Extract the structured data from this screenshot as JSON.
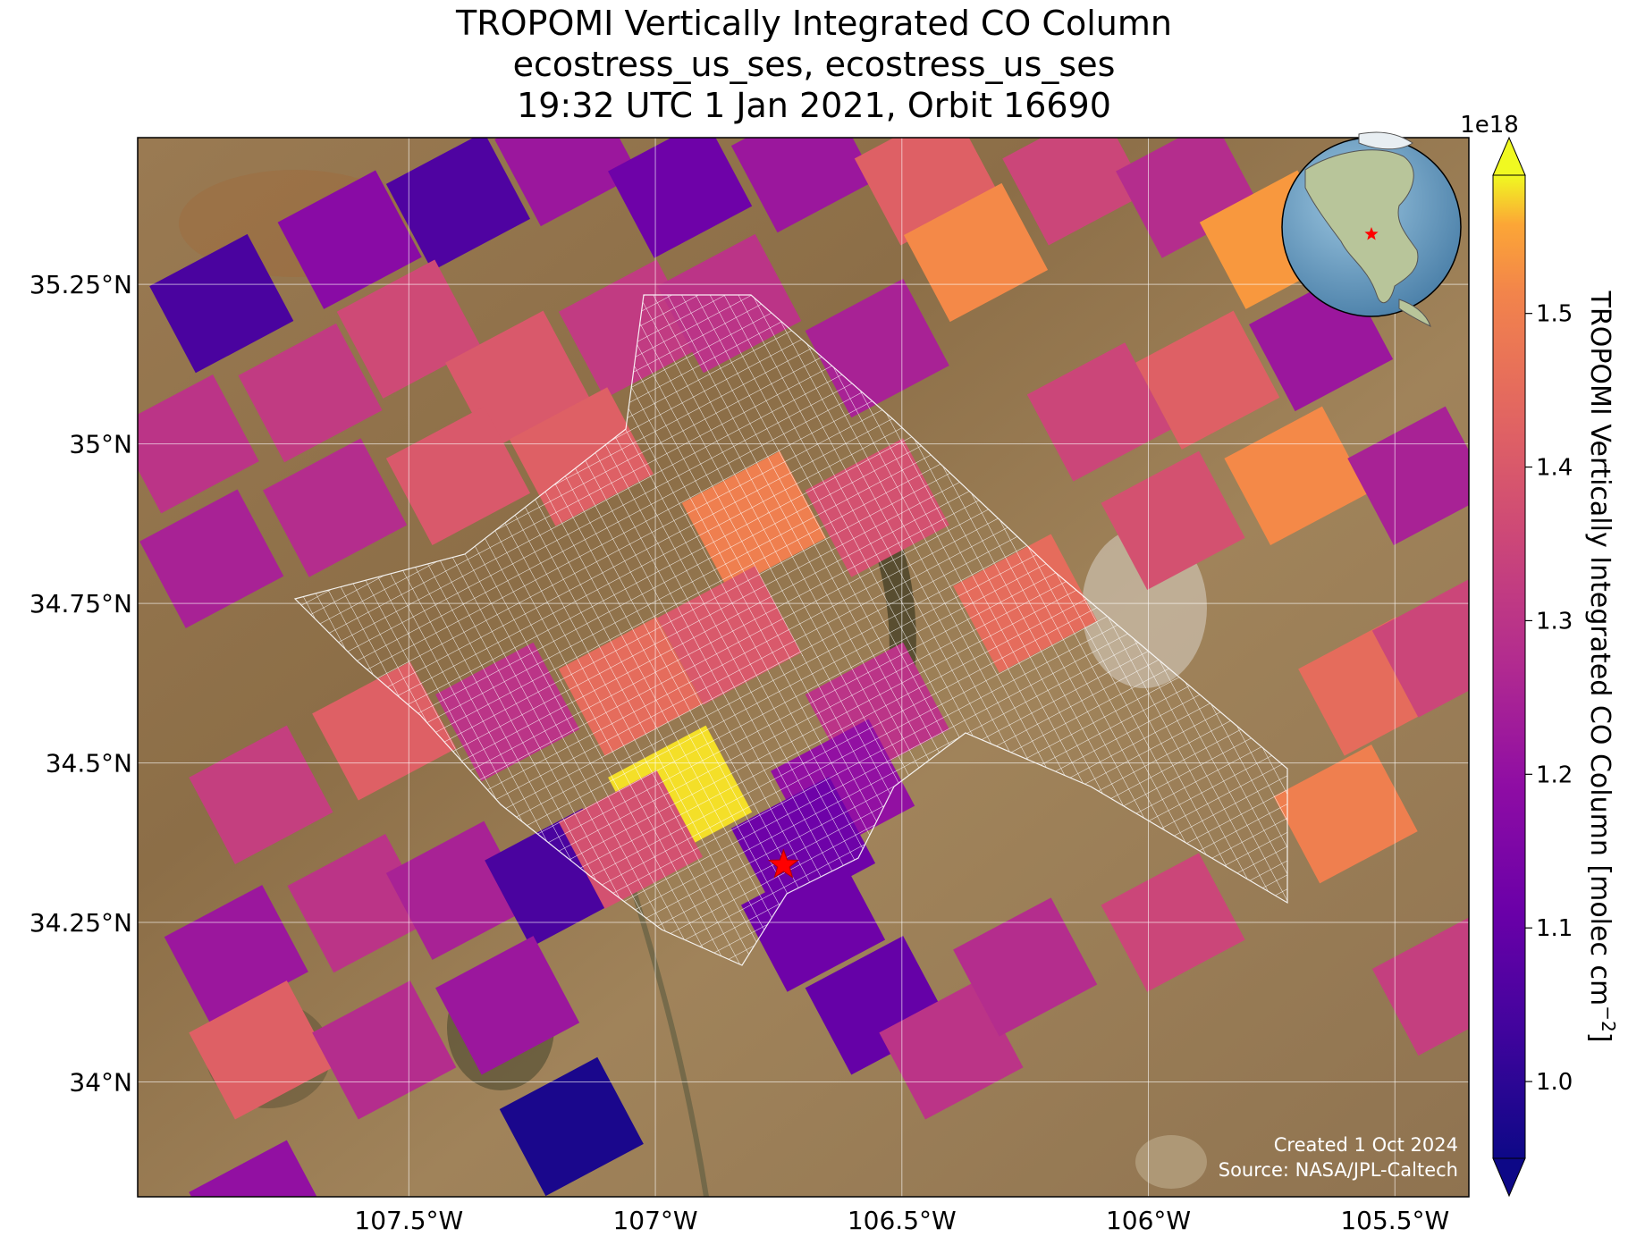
{
  "title": {
    "line1": "TROPOMI Vertically Integrated CO Column",
    "line2": "ecostress_us_ses, ecostress_us_ses",
    "line3": "19:32 UTC 1 Jan 2021, Orbit 16690"
  },
  "credits": {
    "created": "Created 1 Oct 2024",
    "source": "Source: NASA/JPL-Caltech"
  },
  "map": {
    "lon_range": [
      -108.05,
      -105.35
    ],
    "lat_range": [
      33.82,
      35.48
    ],
    "lon_ticks": [
      {
        "value": -107.5,
        "label": "107.5°W"
      },
      {
        "value": -107.0,
        "label": "107°W"
      },
      {
        "value": -106.5,
        "label": "106.5°W"
      },
      {
        "value": -106.0,
        "label": "106°W"
      },
      {
        "value": -105.5,
        "label": "105.5°W"
      }
    ],
    "lat_ticks": [
      {
        "value": 35.25,
        "label": "35.25°N"
      },
      {
        "value": 35.0,
        "label": "35°N"
      },
      {
        "value": 34.75,
        "label": "34.75°N"
      },
      {
        "value": 34.5,
        "label": "34.5°N"
      },
      {
        "value": 34.25,
        "label": "34.25°N"
      },
      {
        "value": 34.0,
        "label": "34°N"
      }
    ],
    "gridlines": true,
    "basemap": "satellite imagery (desert terrain)",
    "site_marker": {
      "lon": -106.74,
      "lat": 34.34,
      "icon": "star-icon",
      "color": "#ff0000"
    },
    "inset_globe": {
      "icon": "globe-icon",
      "marker_color": "#ff0000",
      "placement": "top-right"
    }
  },
  "colorbar": {
    "label": "TROPOMI Vertically Integrated CO Column [molec cm",
    "label_exponent": "−2",
    "label_close": "]",
    "offset_text": "1e18",
    "vmin": 0.95,
    "vmax": 1.59,
    "extend": "both",
    "colormap": "plasma",
    "ticks": [
      {
        "value": 1.0,
        "label": "1.0"
      },
      {
        "value": 1.1,
        "label": "1.1"
      },
      {
        "value": 1.2,
        "label": "1.2"
      },
      {
        "value": 1.3,
        "label": "1.3"
      },
      {
        "value": 1.4,
        "label": "1.4"
      },
      {
        "value": 1.5,
        "label": "1.5"
      }
    ]
  },
  "chart_data": {
    "type": "heatmap",
    "description_units": "CO column in 1e18 molec cm^-2 at TROPOMI pixel centers",
    "pixels": [
      {
        "lon": -107.88,
        "lat": 35.22,
        "value": 1.05
      },
      {
        "lon": -107.62,
        "lat": 35.32,
        "value": 1.18
      },
      {
        "lon": -107.4,
        "lat": 35.38,
        "value": 1.06
      },
      {
        "lon": -107.18,
        "lat": 35.45,
        "value": 1.22
      },
      {
        "lon": -106.95,
        "lat": 35.4,
        "value": 1.12
      },
      {
        "lon": -106.7,
        "lat": 35.44,
        "value": 1.22
      },
      {
        "lon": -106.45,
        "lat": 35.42,
        "value": 1.42
      },
      {
        "lon": -106.35,
        "lat": 35.3,
        "value": 1.52
      },
      {
        "lon": -106.15,
        "lat": 35.42,
        "value": 1.35
      },
      {
        "lon": -105.92,
        "lat": 35.4,
        "value": 1.28
      },
      {
        "lon": -105.75,
        "lat": 35.32,
        "value": 1.54
      },
      {
        "lon": -105.65,
        "lat": 35.16,
        "value": 1.22
      },
      {
        "lon": -106.55,
        "lat": 35.15,
        "value": 1.25
      },
      {
        "lon": -107.95,
        "lat": 35.0,
        "value": 1.3
      },
      {
        "lon": -107.7,
        "lat": 35.08,
        "value": 1.32
      },
      {
        "lon": -107.5,
        "lat": 35.18,
        "value": 1.36
      },
      {
        "lon": -107.28,
        "lat": 35.1,
        "value": 1.4
      },
      {
        "lon": -107.05,
        "lat": 35.18,
        "value": 1.32
      },
      {
        "lon": -106.85,
        "lat": 35.22,
        "value": 1.3
      },
      {
        "lon": -106.1,
        "lat": 35.05,
        "value": 1.35
      },
      {
        "lon": -105.88,
        "lat": 35.1,
        "value": 1.42
      },
      {
        "lon": -105.7,
        "lat": 34.95,
        "value": 1.52
      },
      {
        "lon": -105.45,
        "lat": 34.95,
        "value": 1.25
      },
      {
        "lon": -107.9,
        "lat": 34.82,
        "value": 1.25
      },
      {
        "lon": -107.65,
        "lat": 34.9,
        "value": 1.28
      },
      {
        "lon": -107.4,
        "lat": 34.95,
        "value": 1.4
      },
      {
        "lon": -107.15,
        "lat": 34.98,
        "value": 1.42
      },
      {
        "lon": -106.8,
        "lat": 34.88,
        "value": 1.5
      },
      {
        "lon": -106.55,
        "lat": 34.9,
        "value": 1.38
      },
      {
        "lon": -106.25,
        "lat": 34.75,
        "value": 1.45
      },
      {
        "lon": -105.95,
        "lat": 34.88,
        "value": 1.38
      },
      {
        "lon": -105.55,
        "lat": 34.62,
        "value": 1.45
      },
      {
        "lon": -105.4,
        "lat": 34.68,
        "value": 1.35
      },
      {
        "lon": -107.8,
        "lat": 34.45,
        "value": 1.33
      },
      {
        "lon": -107.55,
        "lat": 34.55,
        "value": 1.42
      },
      {
        "lon": -107.3,
        "lat": 34.58,
        "value": 1.3
      },
      {
        "lon": -107.05,
        "lat": 34.62,
        "value": 1.45
      },
      {
        "lon": -106.85,
        "lat": 34.7,
        "value": 1.4
      },
      {
        "lon": -106.95,
        "lat": 34.45,
        "value": 1.58
      },
      {
        "lon": -106.55,
        "lat": 34.58,
        "value": 1.3
      },
      {
        "lon": -106.62,
        "lat": 34.46,
        "value": 1.2
      },
      {
        "lon": -106.7,
        "lat": 34.37,
        "value": 1.12
      },
      {
        "lon": -106.68,
        "lat": 34.25,
        "value": 1.12
      },
      {
        "lon": -106.55,
        "lat": 34.12,
        "value": 1.1
      },
      {
        "lon": -107.85,
        "lat": 34.2,
        "value": 1.22
      },
      {
        "lon": -107.6,
        "lat": 34.28,
        "value": 1.3
      },
      {
        "lon": -107.4,
        "lat": 34.3,
        "value": 1.25
      },
      {
        "lon": -107.2,
        "lat": 34.32,
        "value": 1.05
      },
      {
        "lon": -107.05,
        "lat": 34.38,
        "value": 1.38
      },
      {
        "lon": -107.8,
        "lat": 34.05,
        "value": 1.42
      },
      {
        "lon": -107.55,
        "lat": 34.05,
        "value": 1.28
      },
      {
        "lon": -107.3,
        "lat": 34.12,
        "value": 1.22
      },
      {
        "lon": -107.17,
        "lat": 33.93,
        "value": 0.97
      },
      {
        "lon": -107.8,
        "lat": 33.8,
        "value": 1.2
      },
      {
        "lon": -106.4,
        "lat": 34.05,
        "value": 1.3
      },
      {
        "lon": -106.25,
        "lat": 34.18,
        "value": 1.28
      },
      {
        "lon": -105.95,
        "lat": 34.25,
        "value": 1.35
      },
      {
        "lon": -105.4,
        "lat": 34.15,
        "value": 1.33
      },
      {
        "lon": -105.6,
        "lat": 34.42,
        "value": 1.5
      }
    ]
  }
}
